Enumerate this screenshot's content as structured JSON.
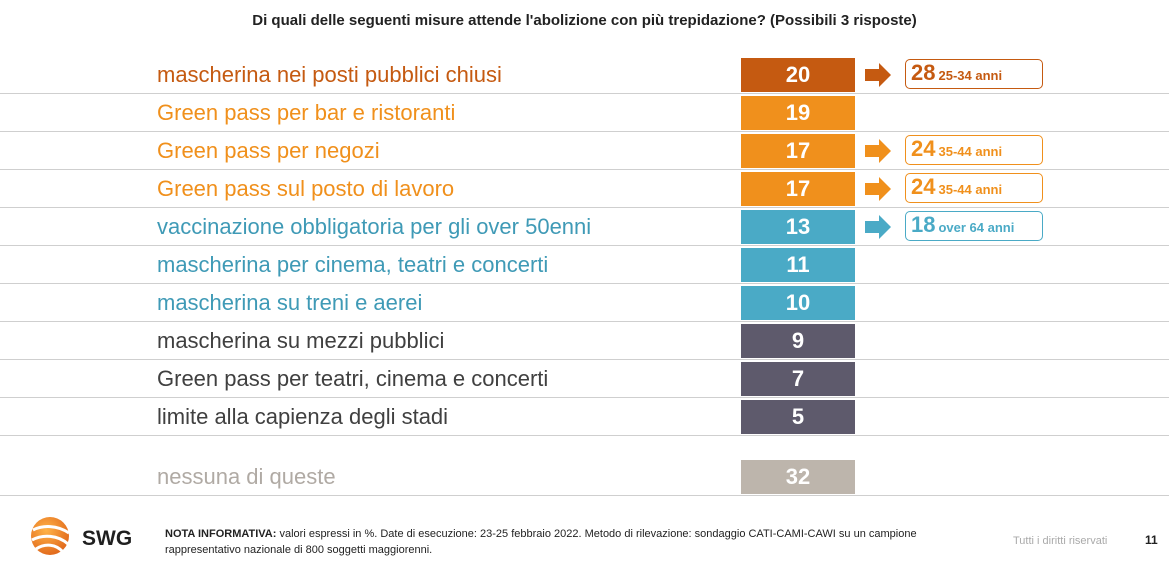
{
  "title": "Di quali delle seguenti misure attende l'abolizione con più trepidazione? (Possibili 3 risposte)",
  "chart_data": {
    "type": "bar",
    "orientation": "horizontal",
    "title": "Di quali delle seguenti misure attende l'abolizione con più trepidazione? (Possibili 3 risposte)",
    "xlabel": "",
    "ylabel": "",
    "unit": "%",
    "categories": [
      "mascherina nei posti pubblici chiusi",
      "Green pass per bar e ristoranti",
      "Green pass per negozi",
      "Green pass sul posto di lavoro",
      "vaccinazione obbligatoria per gli over 50enni",
      "mascherina per cinema, teatri e concerti",
      "mascherina su treni e aerei",
      "mascherina su mezzi pubblici",
      "Green pass per teatri, cinema e concerti",
      "limite alla capienza degli stadi",
      "nessuna di queste"
    ],
    "values": [
      20,
      19,
      17,
      17,
      13,
      11,
      10,
      9,
      7,
      5,
      32
    ],
    "colors": [
      "#c55a11",
      "#f0901c",
      "#f0901c",
      "#f0901c",
      "#4aaac6",
      "#4aaac6",
      "#4aaac6",
      "#5e5a6c",
      "#5e5a6c",
      "#5e5a6c",
      "#bdb5ac"
    ],
    "label_colors": [
      "#c55a11",
      "#f0901c",
      "#f0901c",
      "#f0901c",
      "#3f9ab6",
      "#3f9ab6",
      "#3f9ab6",
      "#404040",
      "#404040",
      "#404040",
      "#b0aaa4"
    ],
    "callouts": [
      {
        "row": 0,
        "value": 28,
        "segment": "25-34 anni",
        "color": "#c55a11"
      },
      {
        "row": 2,
        "value": 24,
        "segment": "35-44 anni",
        "color": "#f0901c"
      },
      {
        "row": 3,
        "value": 24,
        "segment": "35-44 anni",
        "color": "#f0901c"
      },
      {
        "row": 4,
        "value": 18,
        "segment": "over 64 anni",
        "color": "#4aaac6"
      }
    ]
  },
  "footer": {
    "brand": "SWG",
    "note_label": "NOTA INFORMATIVA:",
    "note_text": "valori espressi in %. Date di esecuzione: 23-25 febbraio 2022. Metodo di rilevazione: sondaggio CATI-CAMI-CAWI su un campione rappresentativo nazionale di 800 soggetti maggiorenni.",
    "rights": "Tutti i diritti riservati",
    "page": "11"
  },
  "icons": {
    "logo": "swg-logo-icon",
    "arrow": "arrow-right-icon"
  }
}
